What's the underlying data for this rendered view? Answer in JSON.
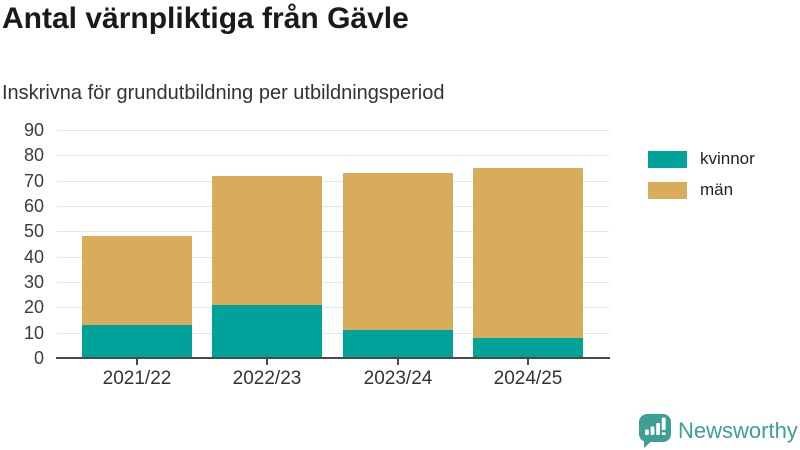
{
  "title": "Antal värnpliktiga från Gävle",
  "subtitle": "Inskrivna för grundutbildning per utbildningsperiod",
  "branding": {
    "logo_text": "Newsworthy",
    "logo_icon": "bar-chart-speech-bubble-icon",
    "brand_color": "#3D9F96"
  },
  "legend": {
    "items": [
      {
        "label": "kvinnor",
        "color": "#00A29A"
      },
      {
        "label": "män",
        "color": "#D9AC5C"
      }
    ]
  },
  "chart_data": {
    "type": "bar",
    "stacked": true,
    "title": "Antal värnpliktiga från Gävle",
    "subtitle": "Inskrivna för grundutbildning per utbildningsperiod",
    "categories": [
      "2021/22",
      "2022/23",
      "2023/24",
      "2024/25"
    ],
    "series": [
      {
        "name": "kvinnor",
        "color": "#00A29A",
        "values": [
          13,
          21,
          11,
          8
        ]
      },
      {
        "name": "män",
        "color": "#D9AC5C",
        "values": [
          35,
          51,
          62,
          67
        ]
      }
    ],
    "totals": [
      48,
      72,
      73,
      75
    ],
    "xlabel": "",
    "ylabel": "",
    "ylim": [
      0,
      90
    ],
    "yticks": [
      0,
      10,
      20,
      30,
      40,
      50,
      60,
      70,
      80,
      90
    ],
    "grid": true,
    "gridline_color": "#e5e5e5",
    "axis_color": "#4a4a4a",
    "legend_position": "right",
    "background": "#ffffff"
  }
}
